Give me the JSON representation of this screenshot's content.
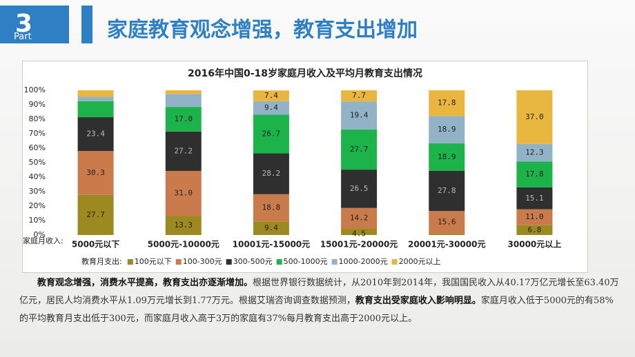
{
  "slide": {
    "number": "3",
    "part": "Part",
    "heading": "家庭教育观念增强，教育支出增加",
    "paragraph": [
      {
        "text": "教育观念增强，消费水平提高，教育支出亦逐渐增加。",
        "bold": true
      },
      {
        "text": "根据世界银行数据统计，从2010年到2014年，我国国民收入从40.17万亿元增长至63.40万亿元，居民人均消费水平从1.09万元增长到1.77万元。根据艾瑞咨询调查数据预测，",
        "bold": false
      },
      {
        "text": "教育支出受家庭收入影响明显。",
        "bold": true
      },
      {
        "text": "家庭月收入低于5000元的有58%的平均教育月支出低于300元，而家庭月收入高于3万的家庭有37%每月教育支出高于2000元以上。",
        "bold": false
      }
    ]
  },
  "chart_data": {
    "type": "stacked_bar",
    "title": "2016年中国0-18岁家庭月收入及平均月教育支出情况",
    "x_label": "家庭月收入:",
    "legend_title": "教育月支出:",
    "categories": [
      "5000元以下",
      "5000元-10000元",
      "10001元-15000元",
      "15001元-20000元",
      "20001元-30000元",
      "30000元以上"
    ],
    "series": [
      {
        "name": "100元以下",
        "color": "#9c8a20",
        "values": [
          27.7,
          13.3,
          9.4,
          4.5,
          1.0,
          6.8
        ],
        "value_labels": [
          "27.7",
          "13.3",
          "9.4",
          "4.5",
          null,
          "6.8"
        ]
      },
      {
        "name": "100-300元",
        "color": "#c97b4b",
        "values": [
          30.3,
          31.0,
          18.8,
          14.2,
          15.6,
          11.0
        ],
        "value_labels": [
          "30.3",
          "31.0",
          "18.8",
          "14.2",
          "15.6",
          "11.0"
        ]
      },
      {
        "name": "300-500元",
        "color": "#2f2f2f",
        "values": [
          23.4,
          27.2,
          28.2,
          26.5,
          27.8,
          15.1
        ],
        "value_labels": [
          "23.4",
          "27.2",
          "28.2",
          "26.5",
          "27.8",
          "15.1"
        ]
      },
      {
        "name": "500-1000元",
        "color": "#1db34b",
        "values": [
          11.1,
          17.0,
          26.7,
          27.7,
          18.9,
          17.8
        ],
        "value_labels": [
          null,
          "17.0",
          "26.7",
          "27.7",
          "18.9",
          "17.8"
        ]
      },
      {
        "name": "1000-2000元",
        "color": "#92b2c7",
        "values": [
          3.0,
          9.0,
          9.4,
          19.4,
          18.9,
          12.3
        ],
        "value_labels": [
          null,
          null,
          "9.4",
          "19.4",
          "18.9",
          "12.3"
        ]
      },
      {
        "name": "2000元以上",
        "color": "#e9b640",
        "values": [
          4.5,
          2.5,
          7.4,
          7.7,
          17.8,
          37.0
        ],
        "value_labels": [
          null,
          null,
          "7.4",
          "7.7",
          "17.8",
          "37.0"
        ]
      }
    ],
    "ylim": [
      0,
      100
    ],
    "yticks": [
      {
        "value": 0,
        "label": "0%"
      },
      {
        "value": 10,
        "label": "10%"
      },
      {
        "value": 20,
        "label": "20%"
      },
      {
        "value": 30,
        "label": "30%"
      },
      {
        "value": 40,
        "label": "40%"
      },
      {
        "value": 50,
        "label": "50%"
      },
      {
        "value": 60,
        "label": "60%"
      },
      {
        "value": 70,
        "label": "70%"
      },
      {
        "value": 80,
        "label": "80%"
      },
      {
        "value": 90,
        "label": "90%"
      },
      {
        "value": 100,
        "label": "100%"
      }
    ]
  }
}
